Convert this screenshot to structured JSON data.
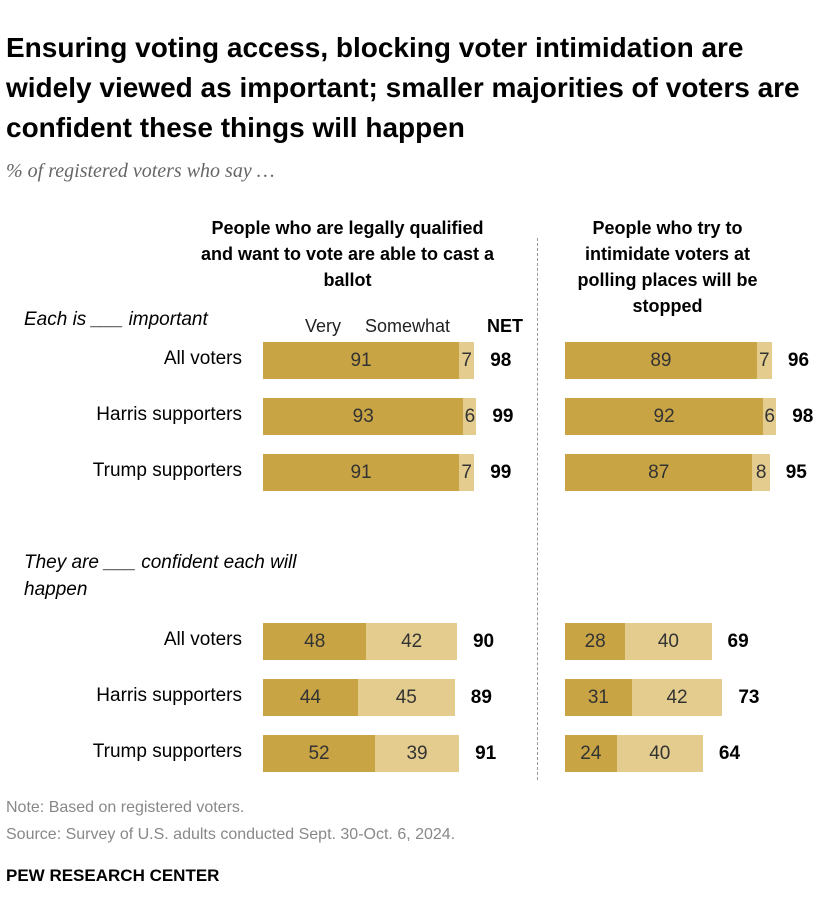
{
  "chart_data": {
    "type": "bar",
    "orientation": "horizontal",
    "stacked": true,
    "title": "Ensuring voting access, blocking voter intimidation are widely viewed as important; smaller majorities of voters are confident these things will happen",
    "subtitle": "% of registered voters who say …",
    "columns": [
      "People who are legally qualified and want to vote are able to cast a ballot",
      "People who try to intimidate voters at polling places will be stopped"
    ],
    "net_label": "NET",
    "sections": [
      {
        "label": "Each is ___ important",
        "categories": [
          "All voters",
          "Harris supporters",
          "Trump supporters"
        ],
        "panels": [
          {
            "series": [
              {
                "name": "Very",
                "color": "#c8a445",
                "values": [
                  91,
                  93,
                  91
                ]
              },
              {
                "name": "Somewhat",
                "color": "#e3cc8d",
                "values": [
                  7,
                  6,
                  7
                ]
              }
            ],
            "net": [
              98,
              99,
              99
            ]
          },
          {
            "series": [
              {
                "name": "Very",
                "color": "#c8a445",
                "values": [
                  89,
                  92,
                  87
                ]
              },
              {
                "name": "Somewhat",
                "color": "#e3cc8d",
                "values": [
                  7,
                  6,
                  8
                ]
              }
            ],
            "net": [
              96,
              98,
              95
            ]
          }
        ]
      },
      {
        "label": "They are ___ confident each will happen",
        "categories": [
          "All voters",
          "Harris supporters",
          "Trump supporters"
        ],
        "panels": [
          {
            "series": [
              {
                "name": "Very",
                "color": "#c8a445",
                "values": [
                  48,
                  44,
                  52
                ]
              },
              {
                "name": "Somewhat",
                "color": "#e3cc8d",
                "values": [
                  42,
                  45,
                  39
                ]
              }
            ],
            "net": [
              90,
              89,
              91
            ]
          },
          {
            "series": [
              {
                "name": "Very",
                "color": "#c8a445",
                "values": [
                  28,
                  31,
                  24
                ]
              },
              {
                "name": "Somewhat",
                "color": "#e3cc8d",
                "values": [
                  40,
                  42,
                  40
                ]
              }
            ],
            "net": [
              69,
              73,
              64
            ]
          }
        ]
      }
    ],
    "note": "Note: Based on registered voters.",
    "source": "Source: Survey of U.S. adults conducted Sept. 30-Oct. 6, 2024.",
    "footer": "PEW RESEARCH CENTER"
  }
}
